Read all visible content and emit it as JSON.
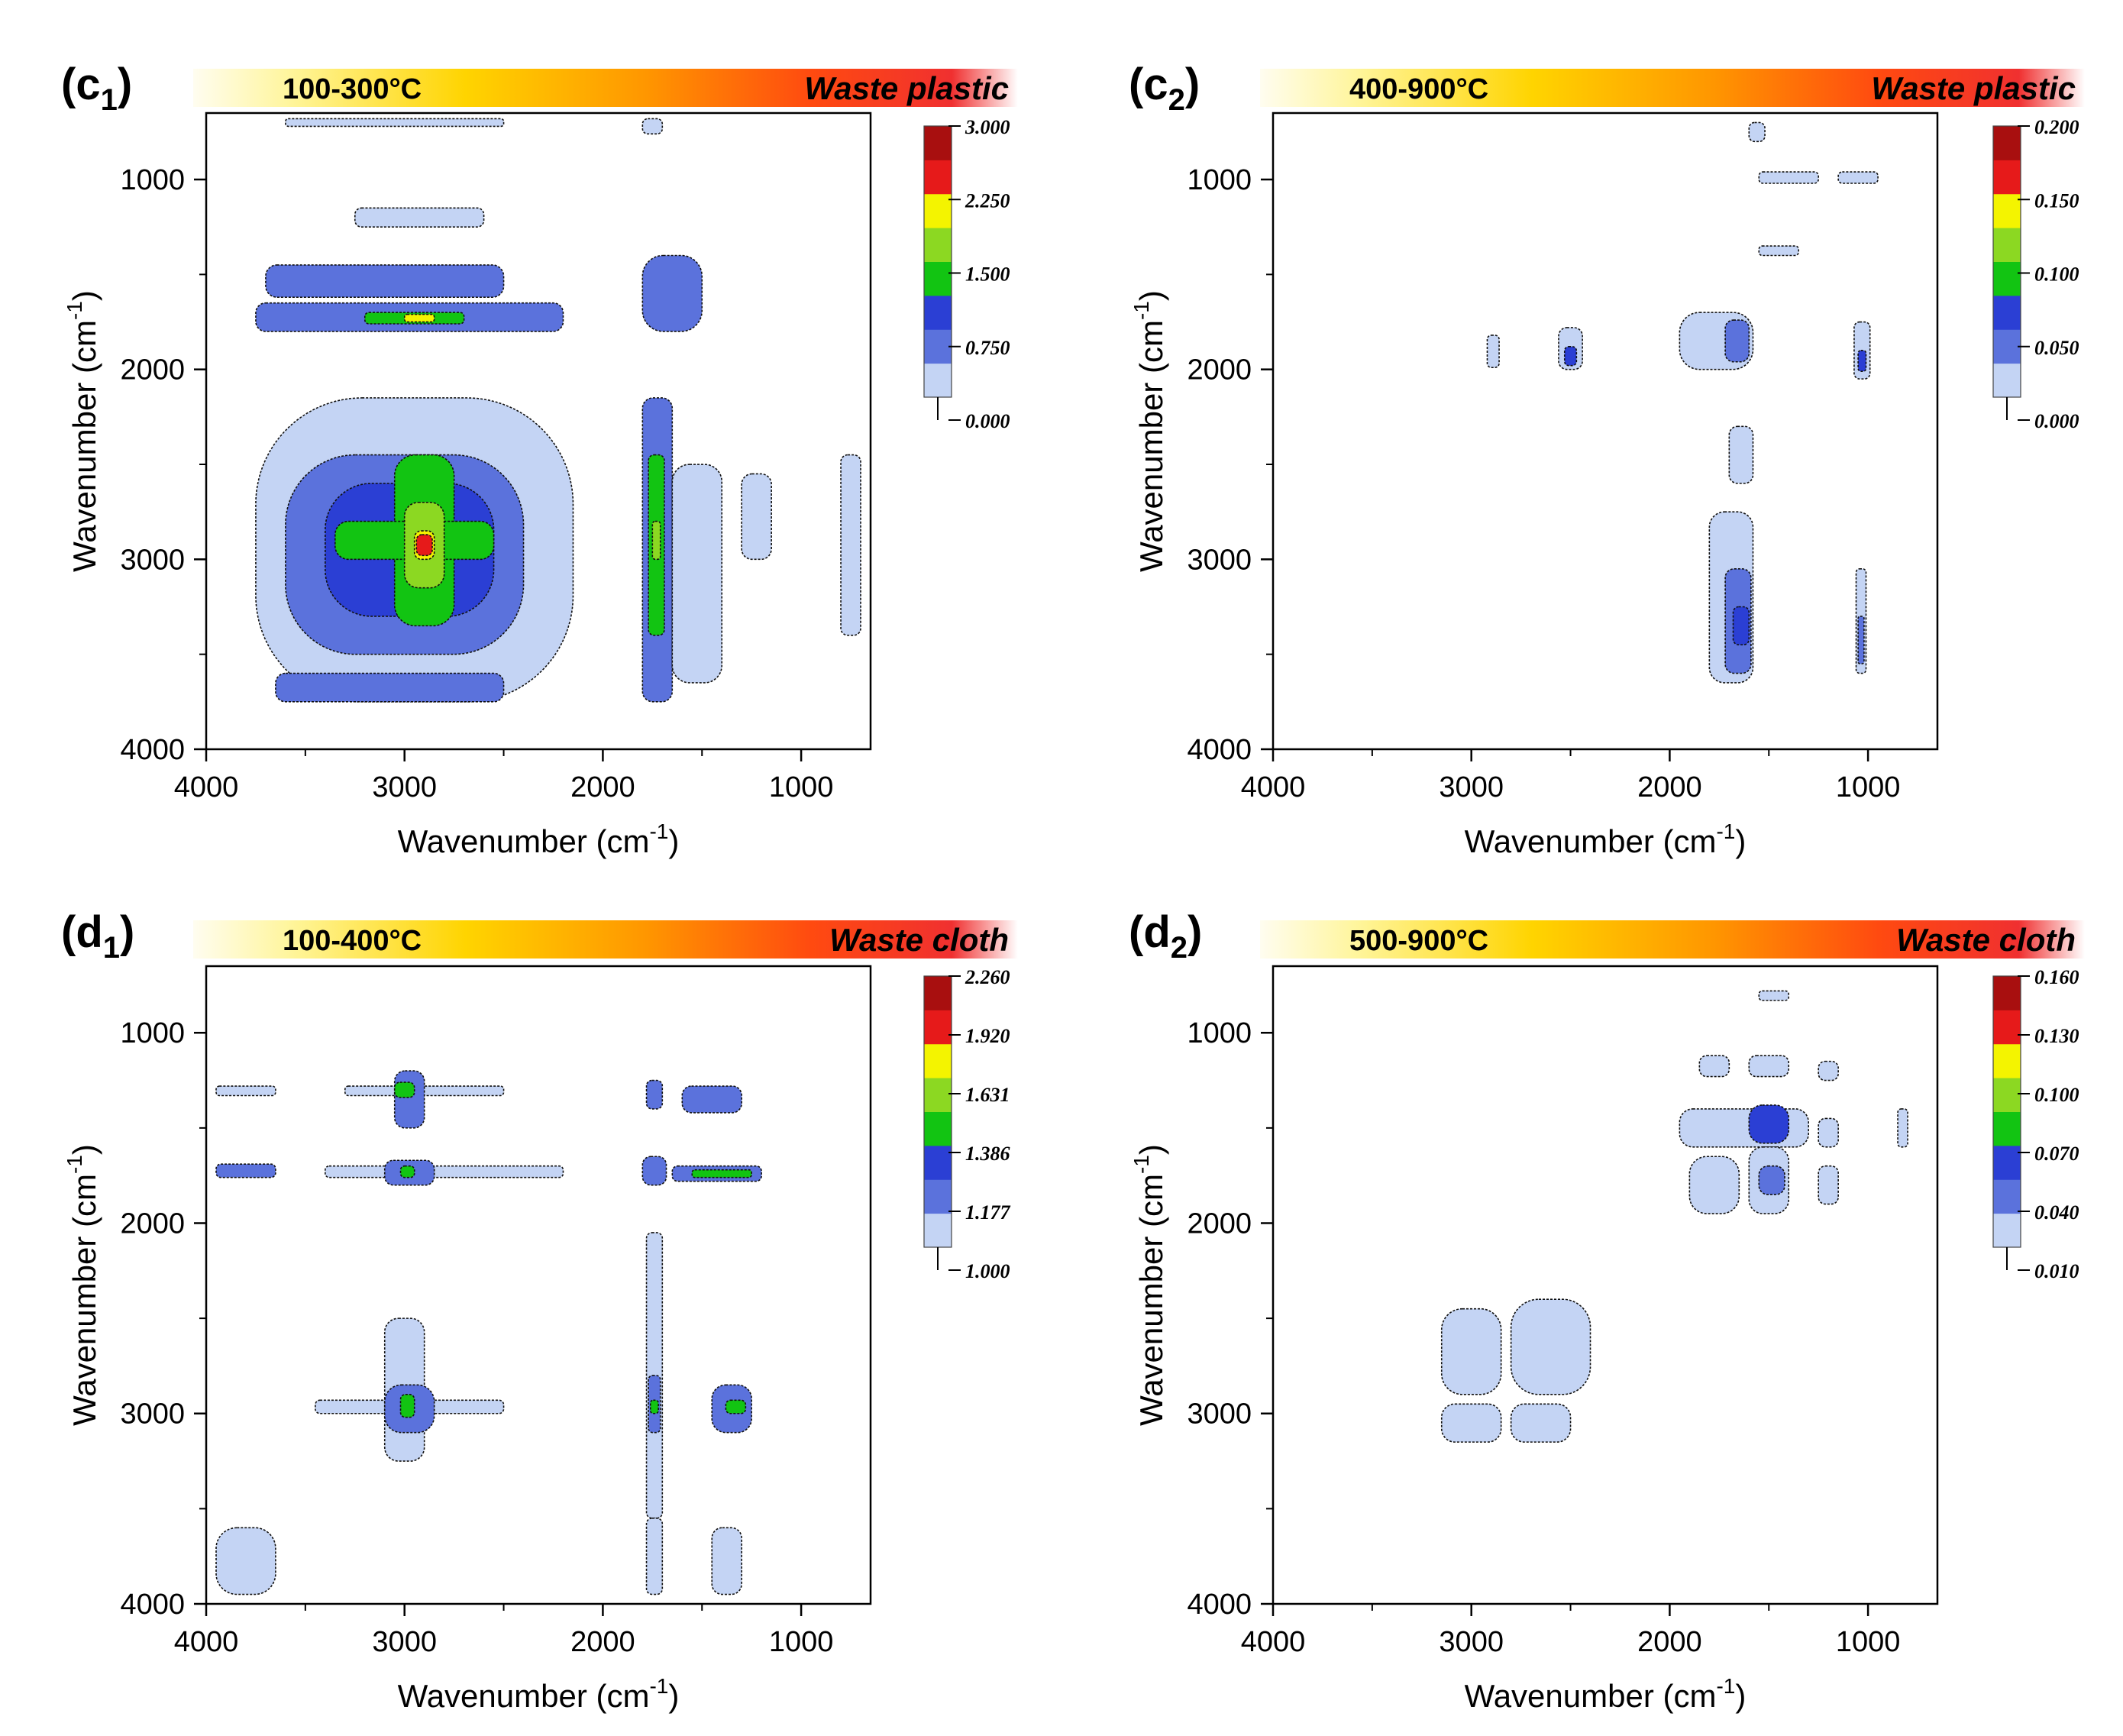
{
  "colors": {
    "levels": [
      "#c4d4f4",
      "#5b72dc",
      "#2b3fd4",
      "#12c412",
      "#8cd822",
      "#f4f400",
      "#e61a1a",
      "#a80f0f"
    ],
    "banner_gradient": [
      "#fffdf0",
      "#fff59a",
      "#ffd400",
      "#ff9600",
      "#ff4a10",
      "#f03030",
      "#ffffff"
    ],
    "contour_line": "#111111",
    "frame": "#000000"
  },
  "chart_data": [
    {
      "id": "c1",
      "type": "heatmap",
      "label_main": "(c",
      "label_sub": "1",
      "label_close": ")",
      "temperature": "100-300°C",
      "material": "Waste plastic",
      "xlabel": "Wavenumber (cm",
      "ylabel": "Wavenumber (cm",
      "unit_sup": "-1",
      "unit_close": ")",
      "xlim": [
        4000,
        650
      ],
      "ylim": [
        650,
        4000
      ],
      "x_ticks": [
        "4000",
        "3000",
        "2000",
        "1000"
      ],
      "y_ticks": [
        "1000",
        "2000",
        "3000",
        "4000"
      ],
      "colorbar_ticks": [
        "3.000",
        "2.250",
        "1.500",
        "0.750",
        "0.000"
      ],
      "colorbar_range": [
        0,
        3
      ],
      "regions": [
        {
          "x": [
            3750,
            2150
          ],
          "y": [
            2150,
            3750
          ],
          "level": 0
        },
        {
          "x": [
            3600,
            2400
          ],
          "y": [
            2450,
            3500
          ],
          "level": 1
        },
        {
          "x": [
            3400,
            2550
          ],
          "y": [
            2600,
            3300
          ],
          "level": 2
        },
        {
          "x": [
            3050,
            2750
          ],
          "y": [
            2450,
            3350
          ],
          "level": 3
        },
        {
          "x": [
            3350,
            2550
          ],
          "y": [
            2800,
            3000
          ],
          "level": 3
        },
        {
          "x": [
            3000,
            2800
          ],
          "y": [
            2700,
            3150
          ],
          "level": 4
        },
        {
          "x": [
            2950,
            2850
          ],
          "y": [
            2850,
            3000
          ],
          "level": 5
        },
        {
          "x": [
            2940,
            2860
          ],
          "y": [
            2870,
            2980
          ],
          "level": 6
        },
        {
          "x": [
            3750,
            2200
          ],
          "y": [
            1650,
            1800
          ],
          "level": 1
        },
        {
          "x": [
            3200,
            2700
          ],
          "y": [
            1700,
            1760
          ],
          "level": 3
        },
        {
          "x": [
            3000,
            2850
          ],
          "y": [
            1710,
            1750
          ],
          "level": 5
        },
        {
          "x": [
            3700,
            2500
          ],
          "y": [
            1450,
            1620
          ],
          "level": 1
        },
        {
          "x": [
            3250,
            2600
          ],
          "y": [
            1150,
            1250
          ],
          "level": 0
        },
        {
          "x": [
            3650,
            2500
          ],
          "y": [
            3600,
            3750
          ],
          "level": 1
        },
        {
          "x": [
            1800,
            1650
          ],
          "y": [
            2150,
            3750
          ],
          "level": 1
        },
        {
          "x": [
            1770,
            1690
          ],
          "y": [
            2450,
            3400
          ],
          "level": 3
        },
        {
          "x": [
            1750,
            1710
          ],
          "y": [
            2800,
            3000
          ],
          "level": 4
        },
        {
          "x": [
            1650,
            1400
          ],
          "y": [
            2500,
            3650
          ],
          "level": 0
        },
        {
          "x": [
            1800,
            1500
          ],
          "y": [
            1400,
            1800
          ],
          "level": 1
        },
        {
          "x": [
            1300,
            1150
          ],
          "y": [
            2550,
            3000
          ],
          "level": 0
        },
        {
          "x": [
            800,
            700
          ],
          "y": [
            2450,
            3400
          ],
          "level": 0
        },
        {
          "x": [
            3600,
            2500
          ],
          "y": [
            680,
            720
          ],
          "level": 0
        },
        {
          "x": [
            1800,
            1700
          ],
          "y": [
            680,
            760
          ],
          "level": 0
        }
      ]
    },
    {
      "id": "c2",
      "type": "heatmap",
      "label_main": "(c",
      "label_sub": "2",
      "label_close": ")",
      "temperature": "400-900°C",
      "material": "Waste plastic",
      "xlabel": "Wavenumber (cm",
      "ylabel": "Wavenumber (cm",
      "unit_sup": "-1",
      "unit_close": ")",
      "xlim": [
        4000,
        650
      ],
      "ylim": [
        650,
        4000
      ],
      "x_ticks": [
        "4000",
        "3000",
        "2000",
        "1000"
      ],
      "y_ticks": [
        "1000",
        "2000",
        "3000",
        "4000"
      ],
      "colorbar_ticks": [
        "0.200",
        "0.150",
        "0.100",
        "0.050",
        "0.000"
      ],
      "colorbar_range": [
        0,
        0.2
      ],
      "regions": [
        {
          "x": [
            1800,
            1580
          ],
          "y": [
            2750,
            3650
          ],
          "level": 0
        },
        {
          "x": [
            1720,
            1590
          ],
          "y": [
            3050,
            3600
          ],
          "level": 1
        },
        {
          "x": [
            1680,
            1600
          ],
          "y": [
            3250,
            3450
          ],
          "level": 2
        },
        {
          "x": [
            1700,
            1580
          ],
          "y": [
            2300,
            2600
          ],
          "level": 0
        },
        {
          "x": [
            1950,
            1580
          ],
          "y": [
            1700,
            2000
          ],
          "level": 0
        },
        {
          "x": [
            1720,
            1600
          ],
          "y": [
            1740,
            1960
          ],
          "level": 1
        },
        {
          "x": [
            2560,
            2440
          ],
          "y": [
            1780,
            2000
          ],
          "level": 0
        },
        {
          "x": [
            2530,
            2470
          ],
          "y": [
            1880,
            1980
          ],
          "level": 2
        },
        {
          "x": [
            2920,
            2860
          ],
          "y": [
            1820,
            1990
          ],
          "level": 0
        },
        {
          "x": [
            1070,
            990
          ],
          "y": [
            1750,
            2050
          ],
          "level": 0
        },
        {
          "x": [
            1050,
            1010
          ],
          "y": [
            1900,
            2010
          ],
          "level": 2
        },
        {
          "x": [
            1060,
            1010
          ],
          "y": [
            3050,
            3600
          ],
          "level": 0
        },
        {
          "x": [
            1050,
            1020
          ],
          "y": [
            3300,
            3550
          ],
          "level": 1
        },
        {
          "x": [
            1550,
            1250
          ],
          "y": [
            960,
            1020
          ],
          "level": 0
        },
        {
          "x": [
            1150,
            950
          ],
          "y": [
            960,
            1020
          ],
          "level": 0
        },
        {
          "x": [
            1550,
            1350
          ],
          "y": [
            1350,
            1400
          ],
          "level": 0
        },
        {
          "x": [
            1600,
            1520
          ],
          "y": [
            700,
            800
          ],
          "level": 0
        }
      ]
    },
    {
      "id": "d1",
      "type": "heatmap",
      "label_main": "(d",
      "label_sub": "1",
      "label_close": ")",
      "temperature": "100-400°C",
      "material": "Waste cloth",
      "xlabel": "Wavenumber (cm",
      "ylabel": "Wavenumber (cm",
      "unit_sup": "-1",
      "unit_close": ")",
      "xlim": [
        4000,
        650
      ],
      "ylim": [
        650,
        4000
      ],
      "x_ticks": [
        "4000",
        "3000",
        "2000",
        "1000"
      ],
      "y_ticks": [
        "1000",
        "2000",
        "3000",
        "4000"
      ],
      "colorbar_ticks": [
        "2.260",
        "1.920",
        "1.631",
        "1.386",
        "1.177",
        "1.000"
      ],
      "colorbar_range": [
        1,
        2.26
      ],
      "regions": [
        {
          "x": [
            3450,
            2500
          ],
          "y": [
            2930,
            3000
          ],
          "level": 0
        },
        {
          "x": [
            3100,
            2900
          ],
          "y": [
            2500,
            3250
          ],
          "level": 0
        },
        {
          "x": [
            3100,
            2850
          ],
          "y": [
            2850,
            3100
          ],
          "level": 1
        },
        {
          "x": [
            3020,
            2950
          ],
          "y": [
            2900,
            3020
          ],
          "level": 3
        },
        {
          "x": [
            3400,
            2200
          ],
          "y": [
            1700,
            1760
          ],
          "level": 0
        },
        {
          "x": [
            3100,
            2850
          ],
          "y": [
            1670,
            1800
          ],
          "level": 1
        },
        {
          "x": [
            3020,
            2950
          ],
          "y": [
            1700,
            1760
          ],
          "level": 3
        },
        {
          "x": [
            3300,
            2500
          ],
          "y": [
            1280,
            1330
          ],
          "level": 0
        },
        {
          "x": [
            3050,
            2900
          ],
          "y": [
            1200,
            1500
          ],
          "level": 1
        },
        {
          "x": [
            3050,
            2950
          ],
          "y": [
            1260,
            1340
          ],
          "level": 3
        },
        {
          "x": [
            3950,
            3650
          ],
          "y": [
            1690,
            1760
          ],
          "level": 1
        },
        {
          "x": [
            3950,
            3650
          ],
          "y": [
            1280,
            1330
          ],
          "level": 0
        },
        {
          "x": [
            1780,
            1700
          ],
          "y": [
            2050,
            3550
          ],
          "level": 0
        },
        {
          "x": [
            1770,
            1710
          ],
          "y": [
            2800,
            3100
          ],
          "level": 1
        },
        {
          "x": [
            1760,
            1720
          ],
          "y": [
            2930,
            3000
          ],
          "level": 3
        },
        {
          "x": [
            1800,
            1680
          ],
          "y": [
            1650,
            1800
          ],
          "level": 1
        },
        {
          "x": [
            1780,
            1700
          ],
          "y": [
            1250,
            1400
          ],
          "level": 1
        },
        {
          "x": [
            1650,
            1200
          ],
          "y": [
            1700,
            1780
          ],
          "level": 1
        },
        {
          "x": [
            1550,
            1250
          ],
          "y": [
            1720,
            1760
          ],
          "level": 3
        },
        {
          "x": [
            1600,
            1300
          ],
          "y": [
            1280,
            1420
          ],
          "level": 1
        },
        {
          "x": [
            1450,
            1250
          ],
          "y": [
            2850,
            3100
          ],
          "level": 1
        },
        {
          "x": [
            1380,
            1280
          ],
          "y": [
            2930,
            3000
          ],
          "level": 3
        },
        {
          "x": [
            3950,
            3650
          ],
          "y": [
            3600,
            3950
          ],
          "level": 0
        },
        {
          "x": [
            1450,
            1300
          ],
          "y": [
            3600,
            3950
          ],
          "level": 0
        },
        {
          "x": [
            1780,
            1700
          ],
          "y": [
            3550,
            3950
          ],
          "level": 0
        }
      ]
    },
    {
      "id": "d2",
      "type": "heatmap",
      "label_main": "(d",
      "label_sub": "2",
      "label_close": ")",
      "temperature": "500-900°C",
      "material": "Waste cloth",
      "xlabel": "Wavenumber (cm",
      "ylabel": "Wavenumber (cm",
      "unit_sup": "-1",
      "unit_close": ")",
      "xlim": [
        4000,
        650
      ],
      "ylim": [
        650,
        4000
      ],
      "x_ticks": [
        "4000",
        "3000",
        "2000",
        "1000"
      ],
      "y_ticks": [
        "1000",
        "2000",
        "3000",
        "4000"
      ],
      "colorbar_ticks": [
        "0.160",
        "0.130",
        "0.100",
        "0.070",
        "0.040",
        "0.010"
      ],
      "colorbar_range": [
        0.01,
        0.16
      ],
      "regions": [
        {
          "x": [
            3150,
            2850
          ],
          "y": [
            2450,
            2900
          ],
          "level": 0
        },
        {
          "x": [
            2800,
            2400
          ],
          "y": [
            2400,
            2900
          ],
          "level": 0
        },
        {
          "x": [
            3150,
            2850
          ],
          "y": [
            2950,
            3150
          ],
          "level": 0
        },
        {
          "x": [
            2800,
            2500
          ],
          "y": [
            2950,
            3150
          ],
          "level": 0
        },
        {
          "x": [
            1950,
            1300
          ],
          "y": [
            1400,
            1600
          ],
          "level": 0
        },
        {
          "x": [
            1600,
            1400
          ],
          "y": [
            1380,
            1580
          ],
          "level": 2
        },
        {
          "x": [
            1900,
            1650
          ],
          "y": [
            1650,
            1950
          ],
          "level": 0
        },
        {
          "x": [
            1600,
            1400
          ],
          "y": [
            1600,
            1950
          ],
          "level": 0
        },
        {
          "x": [
            1550,
            1420
          ],
          "y": [
            1700,
            1850
          ],
          "level": 1
        },
        {
          "x": [
            1850,
            1700
          ],
          "y": [
            1120,
            1230
          ],
          "level": 0
        },
        {
          "x": [
            1600,
            1400
          ],
          "y": [
            1120,
            1230
          ],
          "level": 0
        },
        {
          "x": [
            1250,
            1150
          ],
          "y": [
            1150,
            1250
          ],
          "level": 0
        },
        {
          "x": [
            1250,
            1150
          ],
          "y": [
            1450,
            1600
          ],
          "level": 0
        },
        {
          "x": [
            1250,
            1150
          ],
          "y": [
            1700,
            1900
          ],
          "level": 0
        },
        {
          "x": [
            850,
            800
          ],
          "y": [
            1400,
            1600
          ],
          "level": 0
        },
        {
          "x": [
            1550,
            1400
          ],
          "y": [
            780,
            830
          ],
          "level": 0
        }
      ]
    }
  ]
}
